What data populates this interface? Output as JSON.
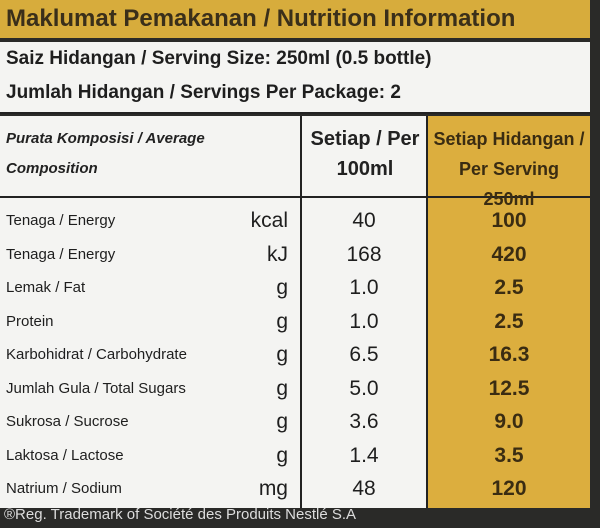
{
  "header": {
    "title": "Maklumat Pemakanan / Nutrition Information"
  },
  "serving": {
    "size": "Saiz Hidangan / Serving Size: 250ml (0.5 bottle)",
    "per_package": "Jumlah Hidangan / Servings Per Package: 2"
  },
  "table": {
    "columns": [
      "Purata Komposisi / Average Composition",
      "Setiap / Per 100ml",
      "Setiap Hidangan / Per Serving 250ml"
    ],
    "rows": [
      [
        "Tenaga / Energy",
        "kcal",
        "40",
        "100"
      ],
      [
        "Tenaga / Energy",
        "kJ",
        "168",
        "420"
      ],
      [
        "Lemak / Fat",
        "g",
        "1.0",
        "2.5"
      ],
      [
        "Protein",
        "g",
        "1.0",
        "2.5"
      ],
      [
        "Karbohidrat / Carbohydrate",
        "g",
        "6.5",
        "16.3"
      ],
      [
        "Jumlah Gula / Total Sugars",
        "g",
        "5.0",
        "12.5"
      ],
      [
        "Sukrosa / Sucrose",
        "g",
        "3.6",
        "9.0"
      ],
      [
        "Laktosa / Lactose",
        "g",
        "1.4",
        "3.5"
      ],
      [
        "Natrium / Sodium",
        "mg",
        "48",
        "120"
      ]
    ]
  },
  "footer": "®Reg. Trademark of Société des Produits Nestlé S.A"
}
